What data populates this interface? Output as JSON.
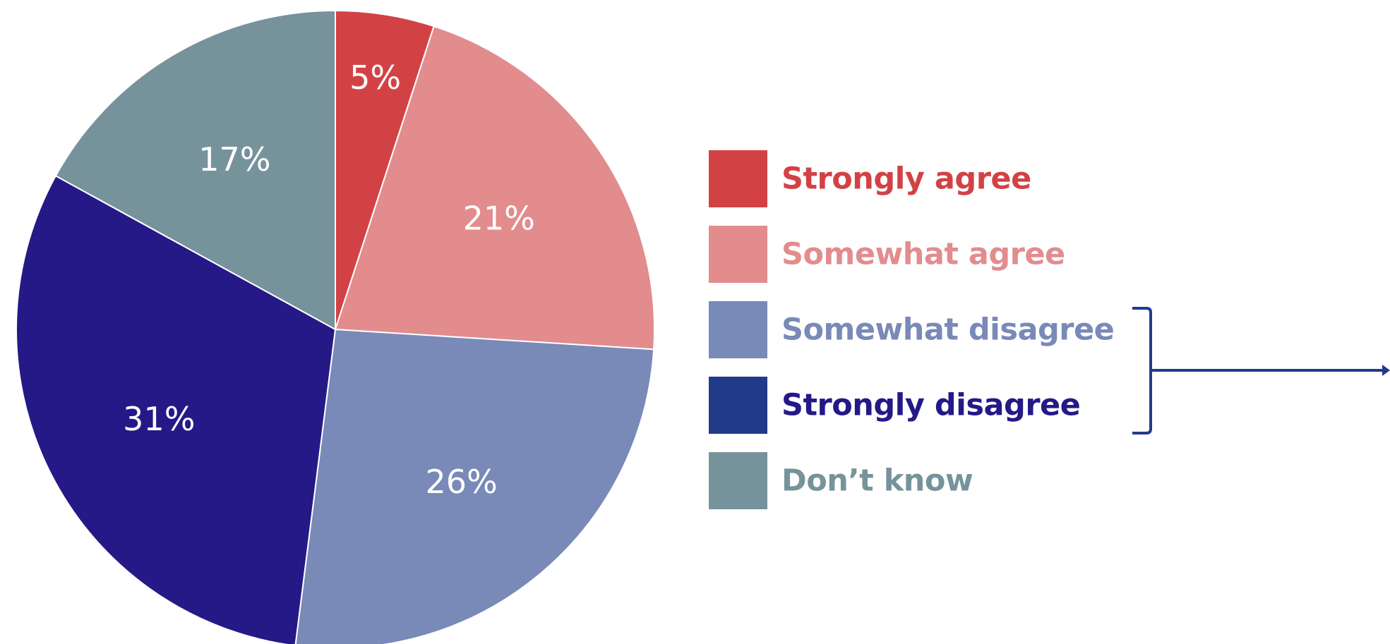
{
  "chart_data": {
    "type": "pie",
    "title": "",
    "start": "12 o'clock",
    "direction": "clockwise",
    "slices": [
      {
        "label": "Strongly agree",
        "value": 5,
        "value_label": "5%",
        "color": "#d24245",
        "label_color": "#d24245"
      },
      {
        "label": "Somewhat agree",
        "value": 21,
        "value_label": "21%",
        "color": "#e28c8e",
        "label_color": "#e28c8e"
      },
      {
        "label": "Somewhat disagree",
        "value": 26,
        "value_label": "26%",
        "color": "#7989b8",
        "label_color": "#7989b8"
      },
      {
        "label": "Strongly disagree",
        "value": 31,
        "value_label": "31%",
        "color": "#251987",
        "label_color": "#251987"
      },
      {
        "label": "Don’t know",
        "value": 17,
        "value_label": "17%",
        "color": "#76939c",
        "label_color": "#76939c"
      }
    ],
    "legend": {
      "position": "right",
      "swatch_colors": [
        "#d24245",
        "#e28c8e",
        "#7989b8",
        "#213a8a",
        "#76939c"
      ]
    },
    "annotation": {
      "type": "bracket-with-arrow",
      "groups": [
        "Somewhat disagree",
        "Strongly disagree"
      ],
      "color": "#213a8a"
    }
  }
}
